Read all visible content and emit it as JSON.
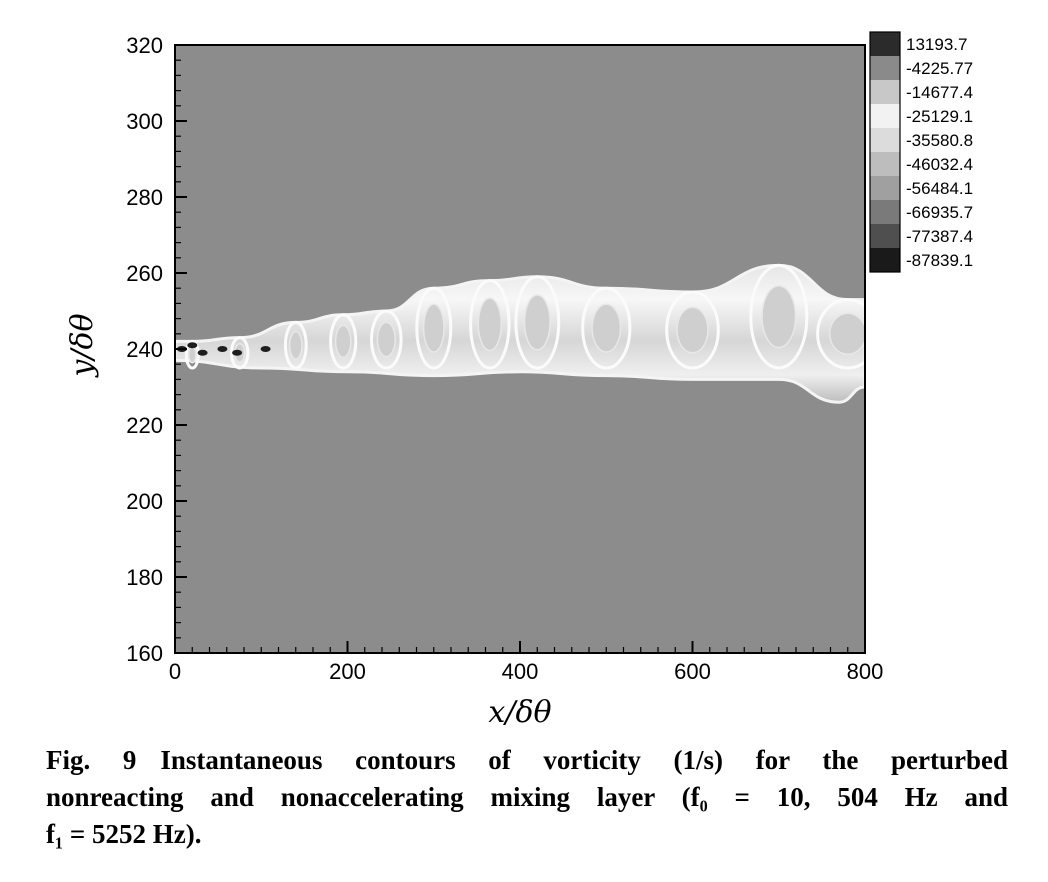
{
  "chart_data": {
    "type": "heatmap",
    "title": "",
    "xlabel": "x/δθ",
    "ylabel": "y/δθ",
    "xlim": [
      0,
      800
    ],
    "ylim": [
      160,
      320
    ],
    "x_ticks": [
      "0",
      "200",
      "400",
      "600",
      "800"
    ],
    "y_ticks": [
      "160",
      "180",
      "200",
      "220",
      "240",
      "260",
      "280",
      "300",
      "320"
    ],
    "x_tick_values": [
      0,
      200,
      400,
      600,
      800
    ],
    "y_tick_values": [
      160,
      180,
      200,
      220,
      240,
      260,
      280,
      300,
      320
    ],
    "legend_position": "top-right",
    "legend_levels": [
      "13193.7",
      "-4225.77",
      "-14677.4",
      "-25129.1",
      "-35580.8",
      "-46032.4",
      "-56484.1",
      "-66935.7",
      "-77387.4",
      "-87839.1"
    ],
    "legend_colors": [
      "#2b2b2b",
      "#8a8a8a",
      "#c8c8c8",
      "#f2f2f2",
      "#dcdcdc",
      "#bdbdbd",
      "#a0a0a0",
      "#7a7a7a",
      "#4f4f4f",
      "#1a1a1a"
    ],
    "background_color": "#8c8c8c",
    "mixing_layer_center_y": 240,
    "wave_crests": [
      {
        "x": 20,
        "y": 242
      },
      {
        "x": 75,
        "y": 243
      },
      {
        "x": 140,
        "y": 247
      },
      {
        "x": 195,
        "y": 249
      },
      {
        "x": 245,
        "y": 250
      },
      {
        "x": 300,
        "y": 256
      },
      {
        "x": 365,
        "y": 258
      },
      {
        "x": 420,
        "y": 259
      },
      {
        "x": 500,
        "y": 256
      },
      {
        "x": 600,
        "y": 255
      },
      {
        "x": 700,
        "y": 262
      },
      {
        "x": 780,
        "y": 253
      }
    ],
    "wave_troughs": [
      {
        "x": 0,
        "y": 237
      },
      {
        "x": 100,
        "y": 235
      },
      {
        "x": 200,
        "y": 234
      },
      {
        "x": 300,
        "y": 233
      },
      {
        "x": 400,
        "y": 234
      },
      {
        "x": 500,
        "y": 233
      },
      {
        "x": 600,
        "y": 232
      },
      {
        "x": 700,
        "y": 232
      },
      {
        "x": 770,
        "y": 226
      },
      {
        "x": 800,
        "y": 230
      }
    ]
  },
  "caption": {
    "fig_label": "Fig. 9",
    "line1": "Instantaneous contours of vorticity (1/s) for the perturbed",
    "line2": "nonreacting and nonaccelerating mixing layer (f₀ = 10, 504 Hz and",
    "line3": "f₁ = 5252 Hz)."
  }
}
